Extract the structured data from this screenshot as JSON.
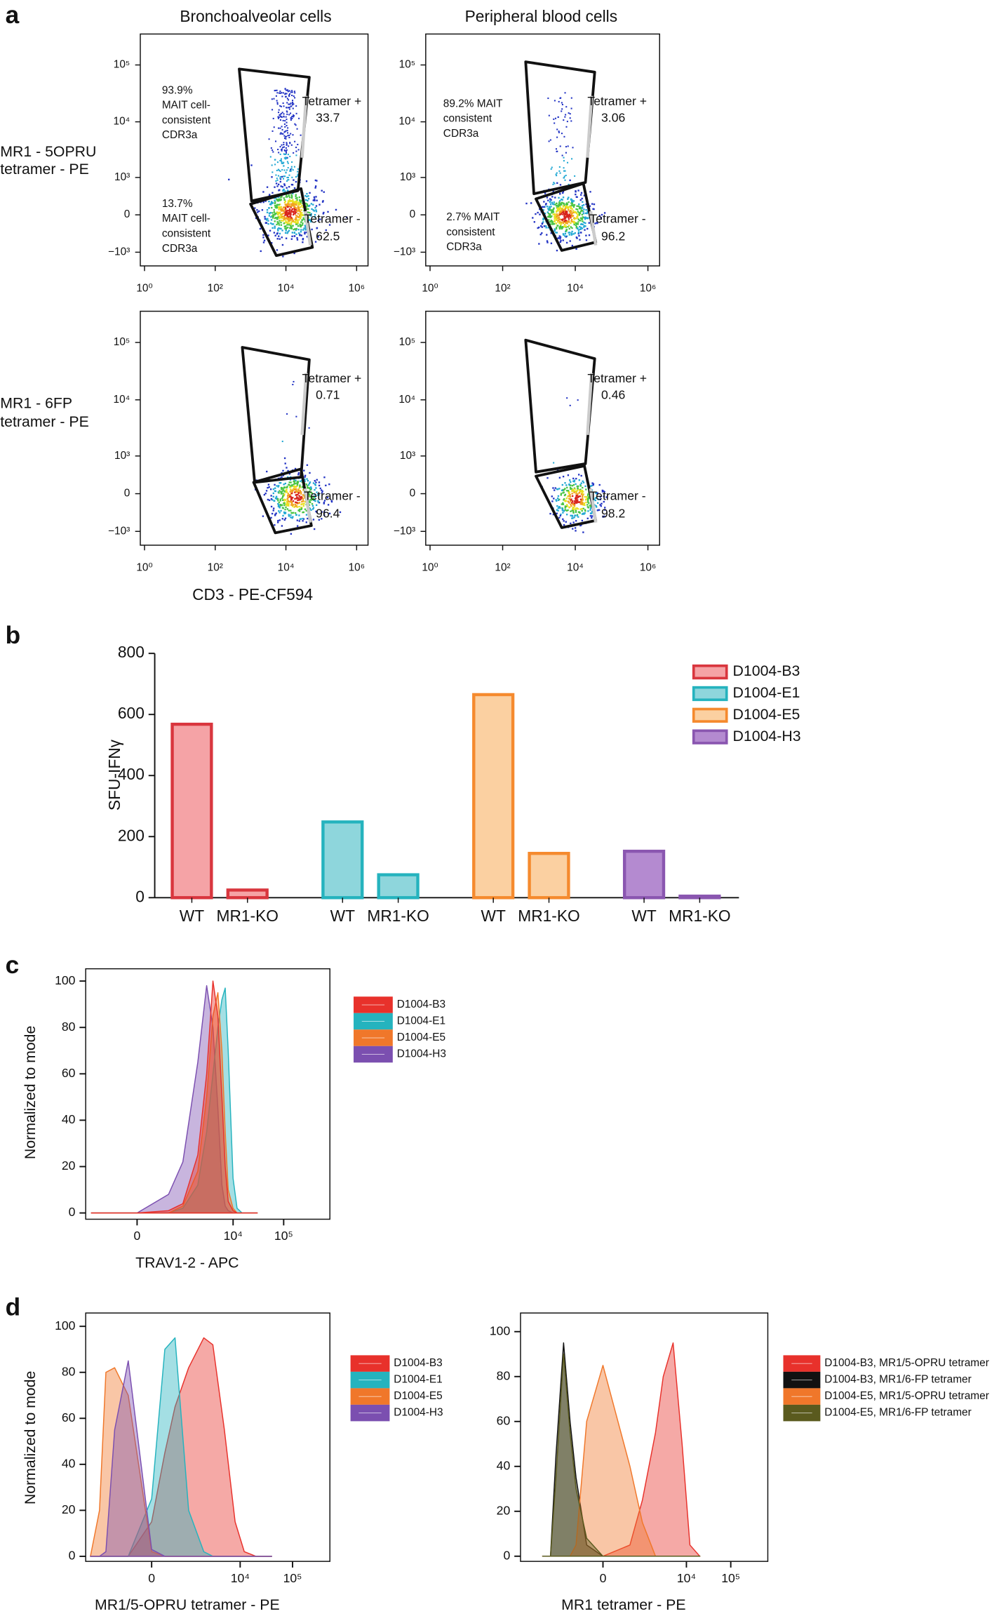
{
  "chart_data": [
    {
      "type": "flow",
      "panel_label": "a",
      "column_titles": [
        "Bronchoalveolar cells",
        "Peripheral blood cells"
      ],
      "row_labels": [
        [
          "MR1 - 5OPRU",
          " tetramer - PE"
        ],
        [
          "MR1 - 6FP",
          "tetramer - PE"
        ]
      ],
      "xlabel": "CD3 - PE-CF594",
      "xscale": "log",
      "yscale": "biexponential",
      "xlim": [
        0.76,
        2100000
      ],
      "ylim": [
        -1800,
        350000
      ],
      "xticks": [
        {
          "value": 1,
          "label": "10⁰"
        },
        {
          "value": 100,
          "label": "10²"
        },
        {
          "value": 10000,
          "label": "10⁴"
        },
        {
          "value": 1000000,
          "label": "10⁶"
        }
      ],
      "yticks": [
        {
          "value": -1000,
          "label": "−10³"
        },
        0,
        {
          "value": 1000,
          "label": "10³"
        },
        {
          "value": 10000,
          "label": "10⁴"
        },
        {
          "value": 100000,
          "label": "10⁵"
        }
      ],
      "plots": [
        {
          "gates": [
            {
              "name": "Tetramer +",
              "value": 33.7
            },
            {
              "name": "Tetramer -",
              "value": 62.5
            }
          ],
          "annotations": [
            [
              "93.9%",
              "MAIT cell-",
              "consistent",
              "CDR3a"
            ],
            [
              "13.7%",
              "MAIT cell-",
              "consistent",
              "CDR3a"
            ]
          ]
        },
        {
          "gates": [
            {
              "name": "Tetramer +",
              "value": 3.06
            },
            {
              "name": "Tetramer -",
              "value": 96.2
            }
          ],
          "annotations": [
            [
              "89.2% MAIT",
              "consistent",
              "CDR3a"
            ],
            [
              "2.7% MAIT",
              "consistent",
              "CDR3a"
            ]
          ]
        },
        {
          "gates": [
            {
              "name": "Tetramer +",
              "value": 0.71
            },
            {
              "name": "Tetramer -",
              "value": 96.4
            }
          ]
        },
        {
          "gates": [
            {
              "name": "Tetramer +",
              "value": 0.46
            },
            {
              "name": "Tetramer -",
              "value": 98.2
            }
          ]
        }
      ]
    },
    {
      "type": "bar",
      "panel_label": "b",
      "ylabel": "SFU-IFNγ",
      "categories": [
        "WT",
        "MR1-KO"
      ],
      "series": [
        {
          "name": "D1004-B3",
          "color": "#d9363e",
          "fill": "#f5a3a6",
          "values": [
            568,
            25
          ]
        },
        {
          "name": "D1004-E1",
          "color": "#25b3be",
          "fill": "#8ed6dc",
          "values": [
            248,
            75
          ]
        },
        {
          "name": "D1004-E5",
          "color": "#f58a2e",
          "fill": "#fbd0a1",
          "values": [
            665,
            145
          ]
        },
        {
          "name": "D1004-H3",
          "color": "#8a56b0",
          "fill": "#b48ad0",
          "values": [
            152,
            5
          ]
        }
      ],
      "ylim": [
        0,
        800
      ],
      "yticks": [
        0,
        200,
        400,
        600,
        800
      ],
      "legend": "upper right"
    },
    {
      "type": "histogram",
      "panel_label": "c",
      "ylabel": "Normalized to mode",
      "xlabel": "TRAV1-2 - APC",
      "xscale": "biexponential",
      "xlim": [
        -1300,
        820000
      ],
      "ylim": [
        -2.7,
        105.3
      ],
      "xticks": [
        0,
        {
          "value": 10000,
          "label": "10⁴"
        },
        {
          "value": 100000,
          "label": "10⁵"
        }
      ],
      "yticks": [
        0,
        20,
        40,
        60,
        80,
        100
      ],
      "x": [
        -1000,
        0,
        500,
        1000,
        2000,
        3000,
        4000,
        5000,
        6000,
        7000,
        8000,
        10000,
        12000,
        15000,
        20000,
        30000
      ],
      "series": [
        {
          "name": "D1004-H3",
          "color": "#7b4fb0",
          "values": [
            0,
            0,
            8,
            22,
            65,
            98,
            80,
            45,
            12,
            3,
            1,
            0,
            0,
            0,
            0,
            0
          ]
        },
        {
          "name": "D1004-E1",
          "color": "#25b3be",
          "values": [
            0,
            0,
            0,
            2,
            12,
            35,
            60,
            80,
            92,
            97,
            70,
            15,
            2,
            0,
            0,
            0
          ]
        },
        {
          "name": "D1004-E5",
          "color": "#f0772a",
          "values": [
            0,
            0,
            0,
            3,
            18,
            50,
            85,
            95,
            70,
            35,
            10,
            2,
            0,
            0,
            0,
            0
          ]
        },
        {
          "name": "D1004-B3",
          "color": "#e8312b",
          "values": [
            0,
            0,
            1,
            4,
            25,
            60,
            100,
            85,
            50,
            20,
            5,
            1,
            0,
            0,
            0,
            0
          ]
        }
      ],
      "legend_order": [
        3,
        1,
        2,
        0
      ]
    },
    {
      "type": "histogram",
      "panel_label": "d",
      "ylabel": "Normalized to mode",
      "xlabel": "MR1/5-OPRU tetramer - PE",
      "xscale": "biexponential",
      "xlim": [
        -3700,
        515000
      ],
      "ylim": [
        -2.2,
        105.8
      ],
      "xticks": [
        0,
        {
          "value": 10000,
          "label": "10⁴"
        },
        {
          "value": 100000,
          "label": "10⁵"
        }
      ],
      "yticks": [
        0,
        20,
        40,
        60,
        80,
        100
      ],
      "x": [
        -3000,
        -2000,
        -1500,
        -1000,
        -500,
        0,
        250,
        500,
        1000,
        2000,
        3000,
        5000,
        8000,
        12000,
        20000,
        40000
      ],
      "series": [
        {
          "name": "D1004-B3",
          "color": "#e8312b",
          "values": [
            0,
            0,
            0,
            0,
            0,
            15,
            45,
            65,
            82,
            95,
            92,
            55,
            15,
            2,
            0,
            0
          ]
        },
        {
          "name": "D1004-E1",
          "color": "#25b3be",
          "values": [
            0,
            0,
            0,
            0,
            0,
            25,
            90,
            95,
            20,
            2,
            0,
            0,
            0,
            0,
            0,
            0
          ]
        },
        {
          "name": "D1004-E5",
          "color": "#f0772a",
          "values": [
            0,
            20,
            80,
            82,
            70,
            2,
            0,
            0,
            0,
            0,
            0,
            0,
            0,
            0,
            0,
            0
          ]
        },
        {
          "name": "D1004-H3",
          "color": "#7b4fb0",
          "values": [
            0,
            0,
            2,
            55,
            85,
            3,
            0,
            0,
            0,
            0,
            0,
            0,
            0,
            0,
            0,
            0
          ]
        }
      ]
    },
    {
      "type": "histogram",
      "xlabel": "MR1 tetramer - PE",
      "xscale": "biexponential",
      "xlim": [
        -9500,
        684000
      ],
      "ylim": [
        -2.3,
        108.3
      ],
      "xticks": [
        0,
        {
          "value": 10000,
          "label": "10⁴"
        },
        {
          "value": 100000,
          "label": "10⁵"
        }
      ],
      "yticks": [
        0,
        20,
        40,
        60,
        80,
        100
      ],
      "x": [
        -3000,
        -2000,
        -1500,
        -1000,
        -700,
        -500,
        -250,
        0,
        500,
        1000,
        2000,
        3000,
        5000,
        8000,
        12000,
        20000
      ],
      "series": [
        {
          "name": "D1004-B3, MR1/5-OPRU tetramer",
          "color": "#e8312b",
          "values": [
            0,
            0,
            0,
            0,
            0,
            0,
            0,
            0,
            5,
            25,
            55,
            80,
            95,
            50,
            5,
            0
          ]
        },
        {
          "name": "D1004-B3, MR1/6-FP tetramer",
          "color": "#111111",
          "values": [
            0,
            0,
            45,
            95,
            60,
            35,
            5,
            0,
            0,
            0,
            0,
            0,
            0,
            0,
            0,
            0
          ]
        },
        {
          "name": "D1004-E5, MR1/5-OPRU tetramer",
          "color": "#f0772a",
          "values": [
            0,
            0,
            0,
            0,
            0,
            5,
            60,
            85,
            40,
            15,
            0,
            0,
            0,
            0,
            0,
            0
          ]
        },
        {
          "name": "D1004-E5, MR1/6-FP tetramer",
          "color": "#5a5a1e",
          "values": [
            0,
            0,
            35,
            90,
            55,
            30,
            8,
            0,
            0,
            0,
            0,
            0,
            0,
            0,
            0,
            0
          ]
        }
      ]
    }
  ]
}
